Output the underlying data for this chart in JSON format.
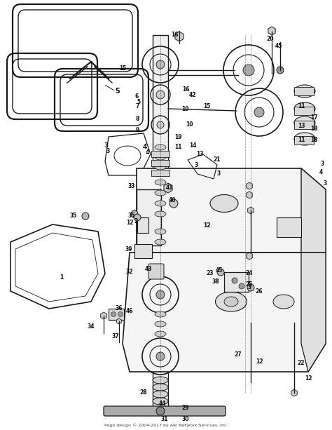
{
  "footer": "Page design © 2004-2017 by ARI Network Services, Inc.",
  "bg_color": "#ffffff",
  "line_color": "#1a1a1a",
  "fig_width": 4.74,
  "fig_height": 6.13,
  "dpi": 100
}
